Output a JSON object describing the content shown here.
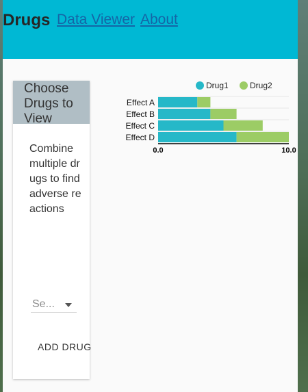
{
  "header": {
    "brand": "Drugs",
    "nav": [
      "Data Viewer",
      "About"
    ]
  },
  "colors": {
    "header_bg": "#00b8d4",
    "drug1": "#26b8c8",
    "drug2": "#9ccc65",
    "card_header_bg": "#b0bec5"
  },
  "sidebar": {
    "title": "Choose Drugs to View",
    "description": "Combine multiple drugs to find adverse reactions",
    "select": {
      "value": "Se..."
    },
    "add_button": "ADD DRUG"
  },
  "chart_data": {
    "type": "bar",
    "orientation": "horizontal",
    "stacked": true,
    "categories": [
      "Effect A",
      "Effect B",
      "Effect C",
      "Effect D"
    ],
    "series": [
      {
        "name": "Drug1",
        "values": [
          3,
          4,
          5,
          6
        ]
      },
      {
        "name": "Drug2",
        "values": [
          1,
          2,
          3,
          4
        ]
      }
    ],
    "xlim": [
      0,
      10
    ],
    "ticks": [
      "0.0",
      "10.0"
    ],
    "legend": "top",
    "grid": true
  }
}
